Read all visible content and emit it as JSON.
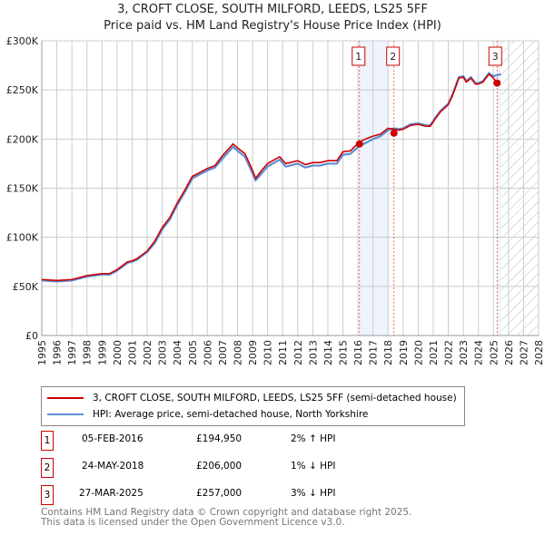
{
  "chart_data": {
    "type": "line",
    "title": "3, CROFT CLOSE, SOUTH MILFORD, LEEDS, LS25 5FF",
    "subtitle": "Price paid vs. HM Land Registry's House Price Index (HPI)",
    "xlim": [
      1995,
      2028
    ],
    "ylim": [
      0,
      300000
    ],
    "x_ticks": [
      "1995",
      "1996",
      "1997",
      "1998",
      "1999",
      "2000",
      "2001",
      "2002",
      "2003",
      "2004",
      "2005",
      "2006",
      "2007",
      "2008",
      "2009",
      "2010",
      "2011",
      "2012",
      "2013",
      "2014",
      "2015",
      "2016",
      "2017",
      "2018",
      "2019",
      "2020",
      "2021",
      "2022",
      "2023",
      "2024",
      "2025",
      "2026",
      "2027",
      "2028"
    ],
    "y_ticks": [
      {
        "v": 0,
        "label": "£0"
      },
      {
        "v": 50000,
        "label": "£50K"
      },
      {
        "v": 100000,
        "label": "£100K"
      },
      {
        "v": 150000,
        "label": "£150K"
      },
      {
        "v": 200000,
        "label": "£200K"
      },
      {
        "v": 250000,
        "label": "£250K"
      },
      {
        "v": 300000,
        "label": "£300K"
      }
    ],
    "series": [
      {
        "name": "3, CROFT CLOSE, SOUTH MILFORD, LEEDS, LS25 5FF (semi-detached house)",
        "color": "#cc0000",
        "x": [
          1995,
          1996,
          1997,
          1998,
          1999,
          1999.5,
          2000,
          2000.7,
          2001,
          2001.3,
          2002,
          2002.5,
          2003,
          2003.5,
          2004,
          2004.5,
          2005,
          2005.5,
          2006,
          2006.5,
          2007,
          2007.7,
          2008,
          2008.5,
          2009,
          2009.2,
          2009.6,
          2010,
          2010.8,
          2011.2,
          2011.5,
          2012,
          2012.5,
          2013,
          2013.5,
          2014,
          2014.6,
          2015,
          2015.5,
          2016.1,
          2016.5,
          2017,
          2017.5,
          2018,
          2018.4,
          2018.7,
          2019,
          2019.5,
          2020,
          2020.5,
          2020.8,
          2021.2,
          2021.5,
          2022,
          2022.3,
          2022.7,
          2023,
          2023.2,
          2023.5,
          2023.8,
          2024,
          2024.3,
          2024.7,
          2025,
          2025.24
        ],
        "y": [
          57000,
          56000,
          57000,
          61000,
          63000,
          63000,
          67000,
          75000,
          76000,
          78000,
          86000,
          96000,
          110000,
          120000,
          135000,
          148000,
          162000,
          166000,
          170000,
          173000,
          183000,
          195000,
          191000,
          185000,
          168000,
          160000,
          168000,
          175000,
          182000,
          175000,
          176000,
          178000,
          174000,
          176000,
          176000,
          178000,
          178000,
          187000,
          188000,
          197000,
          200000,
          203000,
          205000,
          211000,
          210000,
          209000,
          210000,
          214000,
          215000,
          213000,
          213000,
          222000,
          228000,
          235000,
          245000,
          262000,
          263000,
          258000,
          262000,
          256000,
          256000,
          258000,
          266000,
          262000,
          257000
        ]
      },
      {
        "name": "HPI: Average price, semi-detached house, North Yorkshire",
        "color": "#5b8fd6",
        "x": [
          1995,
          1996,
          1997,
          1998,
          1999,
          1999.5,
          2000,
          2000.7,
          2001,
          2001.3,
          2002,
          2002.5,
          2003,
          2003.5,
          2004,
          2004.5,
          2005,
          2005.5,
          2006,
          2006.5,
          2007,
          2007.7,
          2008,
          2008.5,
          2009,
          2009.2,
          2009.6,
          2010,
          2010.8,
          2011.2,
          2011.5,
          2012,
          2012.5,
          2013,
          2013.5,
          2014,
          2014.6,
          2015,
          2015.5,
          2016.1,
          2016.5,
          2017,
          2017.5,
          2018,
          2018.4,
          2018.7,
          2019,
          2019.5,
          2020,
          2020.5,
          2020.8,
          2021.2,
          2021.5,
          2022,
          2022.3,
          2022.7,
          2023,
          2023.2,
          2023.5,
          2023.8,
          2024,
          2024.3,
          2024.7,
          2025,
          2025.5
        ],
        "y": [
          56000,
          55000,
          56000,
          60000,
          62000,
          62000,
          66000,
          74000,
          75000,
          77000,
          85000,
          94000,
          108000,
          118000,
          133000,
          146000,
          160000,
          164000,
          168000,
          171000,
          180000,
          192000,
          188000,
          182000,
          165000,
          158000,
          165000,
          172000,
          179000,
          172000,
          173000,
          175000,
          171000,
          173000,
          173000,
          175000,
          175000,
          184000,
          185000,
          193000,
          196000,
          200000,
          203000,
          209000,
          211000,
          210000,
          211000,
          215000,
          216000,
          214000,
          214000,
          223000,
          229000,
          236000,
          246000,
          263000,
          264000,
          259000,
          263000,
          257000,
          257000,
          259000,
          267000,
          264000,
          266000
        ]
      }
    ],
    "sales": [
      {
        "n": "1",
        "x": 2016.1,
        "date": "05-FEB-2016",
        "price": 194950,
        "price_label": "£194,950",
        "hpi": "2% ↑ HPI"
      },
      {
        "n": "2",
        "x": 2018.39,
        "date": "24-MAY-2018",
        "price": 206000,
        "price_label": "£206,000",
        "hpi": "1% ↓ HPI"
      },
      {
        "n": "3",
        "x": 2025.24,
        "date": "27-MAR-2025",
        "price": 257000,
        "price_label": "£257,000",
        "hpi": "3% ↓ HPI"
      }
    ],
    "shaded_ranges": [
      [
        2016.1,
        2018.0
      ],
      [
        2025.24,
        2025.5
      ]
    ],
    "forecast_hatch_from": 2025.5
  },
  "footer": {
    "line1": "Contains HM Land Registry data © Crown copyright and database right 2025.",
    "line2": "This data is licensed under the Open Government Licence v3.0."
  }
}
